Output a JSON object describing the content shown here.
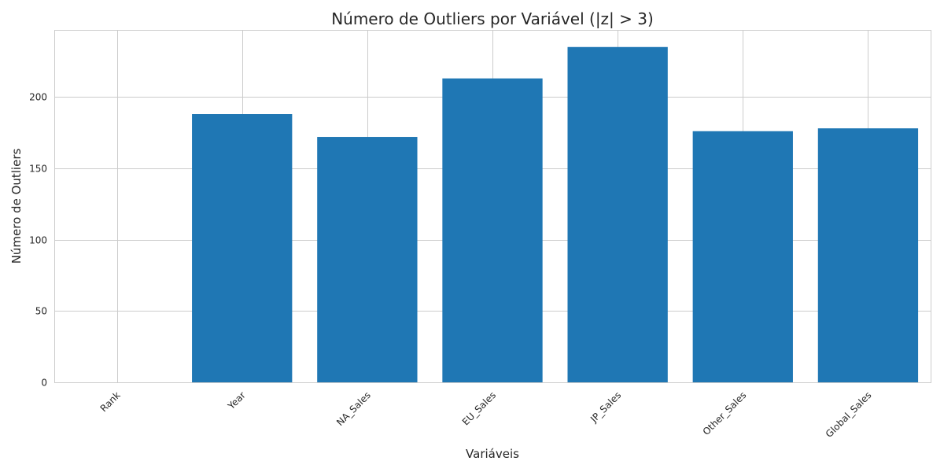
{
  "chart_data": {
    "type": "bar",
    "title": "Número de Outliers por Variável (|z| > 3)",
    "xlabel": "Variáveis",
    "ylabel": "Número de Outliers",
    "categories": [
      "Rank",
      "Year",
      "NA_Sales",
      "EU_Sales",
      "JP_Sales",
      "Other_Sales",
      "Global_Sales"
    ],
    "values": [
      0,
      188,
      172,
      213,
      235,
      176,
      178
    ],
    "ylim": [
      0,
      247
    ],
    "yticks": [
      0,
      50,
      100,
      150,
      200
    ],
    "grid": true,
    "bar_color": "#1f77b4",
    "grid_color": "#cccccc",
    "background": "#ffffff"
  }
}
